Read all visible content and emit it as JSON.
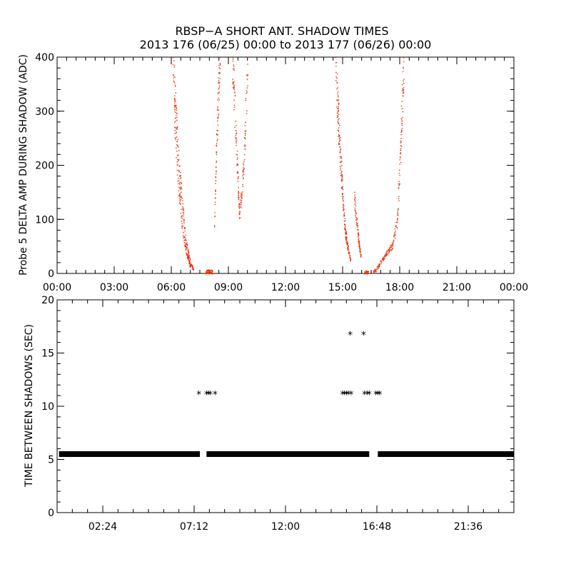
{
  "title": "RBSP−A SHORT ANT. SHADOW TIMES",
  "subtitle": "2013 176 (06/25) 00:00 to 2013 177 (06/26) 00:00",
  "colors": {
    "amp_points": "#e8330c",
    "gap_points": "#000000",
    "axes": "#000000",
    "background": "#ffffff"
  },
  "chart_data": [
    {
      "type": "scatter",
      "ylabel": "Probe 5 DELTA AMP DURING SHADOW (ADC)",
      "xlabel": "",
      "x_unit": "hours",
      "xlim": [
        0,
        24
      ],
      "ylim": [
        0,
        400
      ],
      "xticks": [
        0,
        3,
        6,
        9,
        12,
        15,
        18,
        21,
        24
      ],
      "xtick_labels": [
        "00:00",
        "03:00",
        "06:00",
        "09:00",
        "12:00",
        "15:00",
        "18:00",
        "21:00",
        "00:00"
      ],
      "yticks": [
        0,
        100,
        200,
        300,
        400
      ],
      "ytick_labels": [
        "0",
        "100",
        "200",
        "300",
        "400"
      ],
      "series": [
        {
          "color": "#e8330c",
          "segments": [
            [
              [
                6.05,
                400
              ],
              [
                6.2,
                310
              ],
              [
                6.35,
                220
              ],
              [
                6.55,
                130
              ],
              [
                6.75,
                60
              ],
              [
                6.95,
                25
              ],
              [
                7.15,
                6
              ]
            ],
            [
              [
                6.15,
                300
              ],
              [
                6.35,
                170
              ],
              [
                6.55,
                90
              ],
              [
                6.8,
                35
              ],
              [
                7.0,
                12
              ]
            ],
            [
              [
                7.75,
                2
              ],
              [
                7.95,
                4
              ],
              [
                8.15,
                3
              ]
            ],
            [
              [
                8.25,
                90
              ],
              [
                8.35,
                230
              ],
              [
                8.45,
                330
              ],
              [
                8.55,
                400
              ]
            ],
            [
              [
                9.2,
                400
              ],
              [
                9.3,
                320
              ],
              [
                9.45,
                200
              ],
              [
                9.55,
                110
              ],
              [
                9.7,
                150
              ],
              [
                9.85,
                250
              ],
              [
                10.0,
                400
              ]
            ],
            [
              [
                14.6,
                400
              ],
              [
                14.75,
                290
              ],
              [
                14.9,
                190
              ],
              [
                15.05,
                110
              ],
              [
                15.2,
                60
              ],
              [
                15.4,
                25
              ]
            ],
            [
              [
                14.7,
                330
              ],
              [
                14.9,
                210
              ],
              [
                15.1,
                80
              ],
              [
                15.3,
                40
              ]
            ],
            [
              [
                15.6,
                140
              ],
              [
                15.75,
                90
              ],
              [
                15.85,
                55
              ],
              [
                15.95,
                30
              ]
            ],
            [
              [
                16.1,
                2
              ],
              [
                16.35,
                2
              ]
            ],
            [
              [
                16.6,
                3
              ],
              [
                16.85,
                12
              ],
              [
                17.1,
                28
              ],
              [
                17.35,
                40
              ],
              [
                17.6,
                52
              ],
              [
                17.85,
                95
              ],
              [
                18.0,
                200
              ],
              [
                18.1,
                300
              ],
              [
                18.2,
                400
              ]
            ]
          ]
        }
      ]
    },
    {
      "type": "scatter",
      "ylabel": "TIME BETWEEN SHADOWS (SEC)",
      "xlabel": "",
      "x_unit": "hours",
      "xlim": [
        0,
        24
      ],
      "ylim": [
        0,
        20
      ],
      "xticks": [
        2.4,
        7.2,
        12.0,
        16.8,
        21.6
      ],
      "xtick_labels": [
        "02:24",
        "07:12",
        "12:00",
        "16:48",
        "21:36"
      ],
      "yticks": [
        0,
        5,
        10,
        15,
        20
      ],
      "ytick_labels": [
        "0",
        "5",
        "10",
        "15",
        "20"
      ],
      "series": [
        {
          "color": "#000000",
          "baseline": {
            "value": 5.5,
            "x_ranges": [
              [
                0.1,
                7.5
              ],
              [
                7.85,
                16.4
              ],
              [
                16.85,
                24
              ]
            ]
          },
          "points": [
            [
              7.45,
              11.1
            ],
            [
              7.85,
              11.1
            ],
            [
              7.95,
              11.1
            ],
            [
              8.05,
              11.1
            ],
            [
              8.3,
              11.1
            ],
            [
              15.0,
              11.1
            ],
            [
              15.1,
              11.1
            ],
            [
              15.2,
              11.1
            ],
            [
              15.3,
              11.1
            ],
            [
              15.45,
              11.1
            ],
            [
              15.4,
              16.7
            ],
            [
              16.1,
              16.7
            ],
            [
              16.15,
              11.1
            ],
            [
              16.3,
              11.1
            ],
            [
              16.4,
              11.1
            ],
            [
              16.75,
              11.1
            ],
            [
              16.85,
              11.1
            ],
            [
              16.95,
              11.1
            ]
          ]
        }
      ]
    }
  ]
}
